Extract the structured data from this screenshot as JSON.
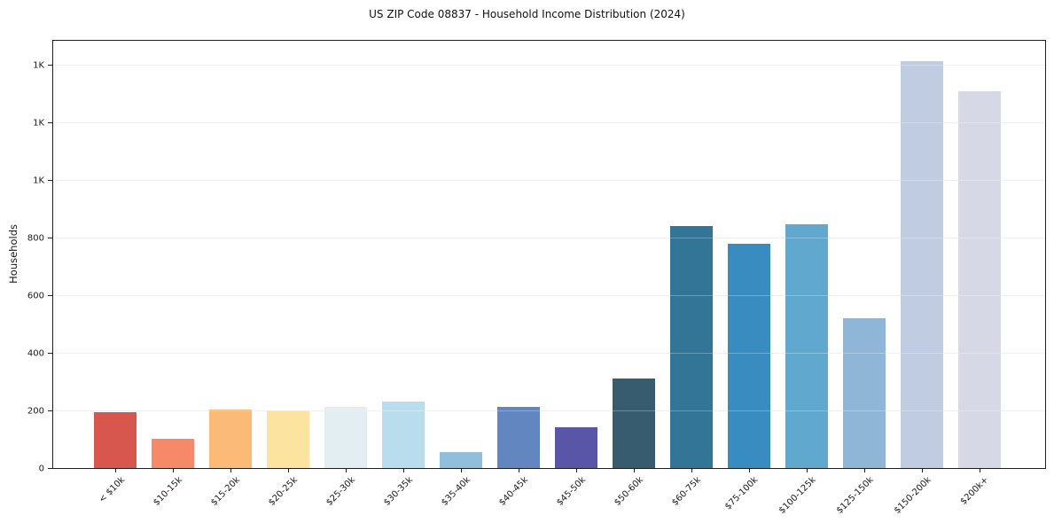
{
  "title": "US ZIP Code 08837 - Household Income Distribution (2024)",
  "chart_data": {
    "type": "bar",
    "title": "US ZIP Code 08837 - Household Income Distribution (2024)",
    "xlabel": "",
    "ylabel": "Households",
    "categories": [
      "< $10k",
      "$10-15k",
      "$15-20k",
      "$20-25k",
      "$25-30k",
      "$30-35k",
      "$35-40k",
      "$40-45k",
      "$45-50k",
      "$50-60k",
      "$60-75k",
      "$75-100k",
      "$100-125k",
      "$125-150k",
      "$150-200k",
      "$200k+"
    ],
    "values": [
      193,
      103,
      204,
      201,
      212,
      231,
      56,
      214,
      143,
      310,
      843,
      780,
      847,
      520,
      1415,
      1310
    ],
    "bar_colors": [
      "#d7564e",
      "#f68a68",
      "#fcba78",
      "#fce3a0",
      "#e3eef3",
      "#badded",
      "#92bedd",
      "#6286c0",
      "#5956a7",
      "#375c6f",
      "#337596",
      "#388cc0",
      "#60a8cd",
      "#90b6d7",
      "#bfcce1",
      "#d7d8e5"
    ],
    "ylim": [
      0,
      1486
    ],
    "ytick_values": [
      0,
      200,
      400,
      600,
      800,
      1000,
      1200,
      1400
    ],
    "ytick_labels": [
      "0",
      "200",
      "400",
      "600",
      "800",
      "1K",
      "1K",
      "1K"
    ],
    "grid": "horizontal",
    "legend": "none",
    "background_color": "#ffffff",
    "gridline_color": "#ebebeb",
    "axis_color": "#1f1f1f"
  }
}
